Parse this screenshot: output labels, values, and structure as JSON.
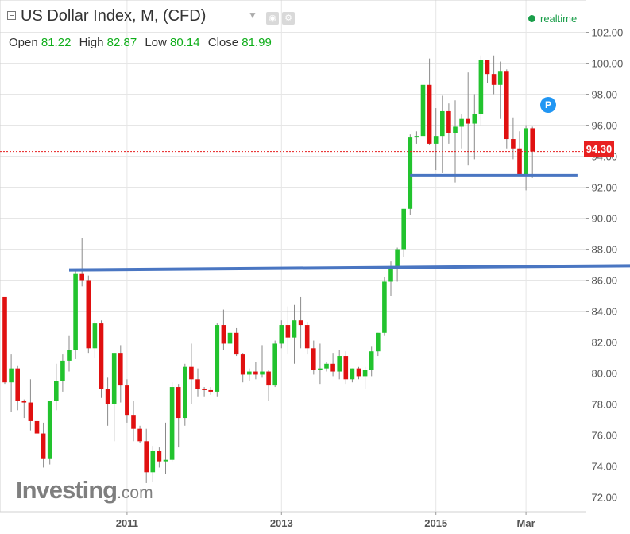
{
  "header": {
    "title": "US Dollar Index, M, (CFD)",
    "open_label": "Open",
    "open_value": "81.22",
    "high_label": "High",
    "high_value": "82.87",
    "low_label": "Low",
    "low_value": "80.14",
    "close_label": "Close",
    "close_value": "81.99",
    "realtime_label": "realtime"
  },
  "logo": {
    "main": "Investing",
    "suffix": ".com"
  },
  "badge_label": "P",
  "current_price": "94.30",
  "colors": {
    "up": "#22c32e",
    "down": "#e01010",
    "trendline": "#4a76c2",
    "price_line": "#e81f1f",
    "grid": "#e6e6e6"
  },
  "chart_data": {
    "type": "candlestick",
    "title": "US Dollar Index, M, (CFD)",
    "timeframe": "Monthly",
    "y_range": [
      71.5,
      103
    ],
    "y_ticks": [
      72,
      74,
      76,
      78,
      80,
      82,
      84,
      86,
      88,
      90,
      92,
      94,
      96,
      98,
      100,
      102
    ],
    "y_tick_labels": [
      "72.00",
      "74.00",
      "76.00",
      "78.00",
      "80.00",
      "82.00",
      "84.00",
      "86.00",
      "88.00",
      "90.00",
      "92.00",
      "94.00",
      "96.00",
      "98.00",
      "100.00",
      "102.00"
    ],
    "x_tick_labels": [
      {
        "label": "2011",
        "index": 19
      },
      {
        "label": "2013",
        "index": 43
      },
      {
        "label": "2015",
        "index": 67
      },
      {
        "label": "Mar",
        "index": 81
      }
    ],
    "current_price": 94.3,
    "candles": [
      [
        84.9,
        84.9,
        79.3,
        79.4
      ],
      [
        79.4,
        81.2,
        77.5,
        80.3
      ],
      [
        80.3,
        80.5,
        77.6,
        78.2
      ],
      [
        78.2,
        78.3,
        77.1,
        78.1
      ],
      [
        78.1,
        79.6,
        76.3,
        76.9
      ],
      [
        76.9,
        77.4,
        75.1,
        76.1
      ],
      [
        76.1,
        76.8,
        73.9,
        74.5
      ],
      [
        74.5,
        78.2,
        74.1,
        78.2
      ],
      [
        78.2,
        80.6,
        77.6,
        79.5
      ],
      [
        79.5,
        81.2,
        78.8,
        80.8
      ],
      [
        80.8,
        82.4,
        80.1,
        81.5
      ],
      [
        81.5,
        86.7,
        80.9,
        86.4
      ],
      [
        86.4,
        88.7,
        85.6,
        86.0
      ],
      [
        86.0,
        86.3,
        81.3,
        81.6
      ],
      [
        81.6,
        83.4,
        81.0,
        83.2
      ],
      [
        83.2,
        83.4,
        78.4,
        79.0
      ],
      [
        79.0,
        79.7,
        76.6,
        78.0
      ],
      [
        78.0,
        81.3,
        75.6,
        81.3
      ],
      [
        81.3,
        81.8,
        78.1,
        79.2
      ],
      [
        79.2,
        79.6,
        76.8,
        77.3
      ],
      [
        77.3,
        78.2,
        75.6,
        76.4
      ],
      [
        76.4,
        76.6,
        75.5,
        75.6
      ],
      [
        75.6,
        76.4,
        72.9,
        73.6
      ],
      [
        73.6,
        75.3,
        73.0,
        75.0
      ],
      [
        75.0,
        75.2,
        73.9,
        74.3
      ],
      [
        74.3,
        76.8,
        73.5,
        74.4
      ],
      [
        74.4,
        79.4,
        74.3,
        79.1
      ],
      [
        79.1,
        79.3,
        75.2,
        77.1
      ],
      [
        77.1,
        80.6,
        76.6,
        80.4
      ],
      [
        80.4,
        81.9,
        78.0,
        79.6
      ],
      [
        79.6,
        80.3,
        78.5,
        79.0
      ],
      [
        79.0,
        79.1,
        78.5,
        78.9
      ],
      [
        78.9,
        79.1,
        78.6,
        78.8
      ],
      [
        78.8,
        83.2,
        78.5,
        83.1
      ],
      [
        83.1,
        84.1,
        81.5,
        81.9
      ],
      [
        81.9,
        82.6,
        80.8,
        82.6
      ],
      [
        82.6,
        82.9,
        81.1,
        81.2
      ],
      [
        81.2,
        81.3,
        79.4,
        79.9
      ],
      [
        79.9,
        80.3,
        79.5,
        80.1
      ],
      [
        80.1,
        80.7,
        79.6,
        79.9
      ],
      [
        79.9,
        81.8,
        79.7,
        80.1
      ],
      [
        80.1,
        80.2,
        78.2,
        79.2
      ],
      [
        79.2,
        82.1,
        79.1,
        81.9
      ],
      [
        81.9,
        83.4,
        81.6,
        83.1
      ],
      [
        83.1,
        84.3,
        81.2,
        82.3
      ],
      [
        82.3,
        84.4,
        80.6,
        83.4
      ],
      [
        83.4,
        84.9,
        81.6,
        83.1
      ],
      [
        83.1,
        83.3,
        81.2,
        81.6
      ],
      [
        81.6,
        82.1,
        79.9,
        80.2
      ],
      [
        80.2,
        81.9,
        79.3,
        80.3
      ],
      [
        80.3,
        80.7,
        80.1,
        80.6
      ],
      [
        80.6,
        81.3,
        79.8,
        80.1
      ],
      [
        80.1,
        81.5,
        79.6,
        81.1
      ],
      [
        81.1,
        81.4,
        79.3,
        79.6
      ],
      [
        79.6,
        80.3,
        79.4,
        80.3
      ],
      [
        80.3,
        80.4,
        79.6,
        79.8
      ],
      [
        79.8,
        80.4,
        79.0,
        80.2
      ],
      [
        80.2,
        81.7,
        79.8,
        81.4
      ],
      [
        81.4,
        82.6,
        81.1,
        82.6
      ],
      [
        82.6,
        86.2,
        82.4,
        85.9
      ],
      [
        85.9,
        87.2,
        85.0,
        86.9
      ],
      [
        86.9,
        88.1,
        85.9,
        88.0
      ],
      [
        88.0,
        90.6,
        87.5,
        90.6
      ],
      [
        90.6,
        95.4,
        90.2,
        95.2
      ],
      [
        95.2,
        95.6,
        94.8,
        95.3
      ],
      [
        95.3,
        100.3,
        94.4,
        98.6
      ],
      [
        98.6,
        100.3,
        94.7,
        94.8
      ],
      [
        94.8,
        97.1,
        93.1,
        95.3
      ],
      [
        95.3,
        97.9,
        92.9,
        96.9
      ],
      [
        96.9,
        97.4,
        94.8,
        95.5
      ],
      [
        95.5,
        97.6,
        92.3,
        95.9
      ],
      [
        95.9,
        96.7,
        94.5,
        96.4
      ],
      [
        96.4,
        99.4,
        93.4,
        96.1
      ],
      [
        96.1,
        98.0,
        93.8,
        96.7
      ],
      [
        96.7,
        100.5,
        96.0,
        100.2
      ],
      [
        100.2,
        100.2,
        98.7,
        99.3
      ],
      [
        99.3,
        100.5,
        98.0,
        98.6
      ],
      [
        98.6,
        100.1,
        96.4,
        99.5
      ],
      [
        99.5,
        99.6,
        94.5,
        95.1
      ],
      [
        95.1,
        96.5,
        93.8,
        94.5
      ],
      [
        94.5,
        95.6,
        92.8,
        92.8
      ],
      [
        92.8,
        96.0,
        91.8,
        95.8
      ],
      [
        95.8,
        95.9,
        92.6,
        94.3
      ]
    ],
    "trendlines": [
      {
        "from": {
          "index": 10,
          "value": 86.66
        },
        "to": {
          "index": 107,
          "value": 86.96
        }
      },
      {
        "from": {
          "index": 63,
          "value": 92.75
        },
        "to": {
          "index": 89,
          "value": 92.75
        }
      }
    ]
  }
}
